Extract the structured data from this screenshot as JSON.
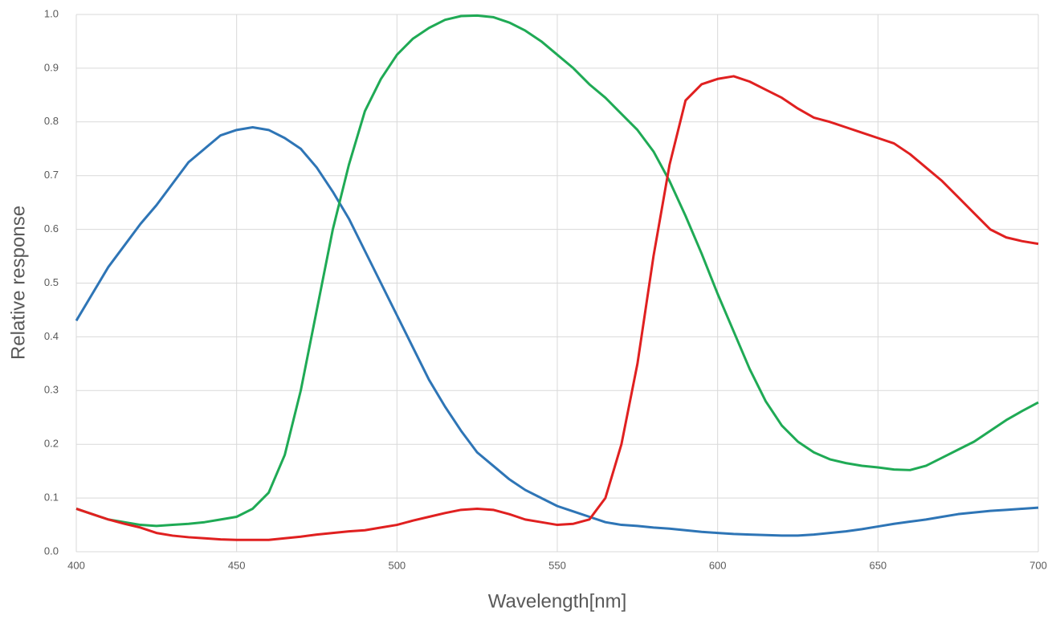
{
  "chart_data": {
    "type": "line",
    "xlabel": "Wavelength[nm]",
    "ylabel": "Relative response",
    "x": [
      400,
      405,
      410,
      415,
      420,
      425,
      430,
      435,
      440,
      445,
      450,
      455,
      460,
      465,
      470,
      475,
      480,
      485,
      490,
      495,
      500,
      505,
      510,
      515,
      520,
      525,
      530,
      535,
      540,
      545,
      550,
      555,
      560,
      565,
      570,
      575,
      580,
      585,
      590,
      595,
      600,
      605,
      610,
      615,
      620,
      625,
      630,
      635,
      640,
      645,
      650,
      655,
      660,
      665,
      670,
      675,
      680,
      685,
      690,
      695,
      700
    ],
    "series": [
      {
        "color": "#2e75b6",
        "values": [
          0.43,
          0.48,
          0.53,
          0.57,
          0.61,
          0.645,
          0.685,
          0.725,
          0.75,
          0.775,
          0.785,
          0.79,
          0.785,
          0.77,
          0.75,
          0.715,
          0.67,
          0.62,
          0.56,
          0.5,
          0.44,
          0.38,
          0.32,
          0.27,
          0.225,
          0.185,
          0.16,
          0.135,
          0.115,
          0.1,
          0.085,
          0.075,
          0.065,
          0.055,
          0.05,
          0.048,
          0.045,
          0.043,
          0.04,
          0.037,
          0.035,
          0.033,
          0.032,
          0.031,
          0.03,
          0.03,
          0.032,
          0.035,
          0.038,
          0.042,
          0.047,
          0.052,
          0.056,
          0.06,
          0.065,
          0.07,
          0.073,
          0.076,
          0.078,
          0.08,
          0.082
        ]
      },
      {
        "color": "#1faa55",
        "values": [
          0.08,
          0.07,
          0.06,
          0.055,
          0.05,
          0.048,
          0.05,
          0.052,
          0.055,
          0.06,
          0.065,
          0.08,
          0.11,
          0.18,
          0.3,
          0.45,
          0.6,
          0.72,
          0.82,
          0.88,
          0.925,
          0.955,
          0.975,
          0.99,
          0.997,
          0.998,
          0.995,
          0.985,
          0.97,
          0.95,
          0.925,
          0.9,
          0.87,
          0.845,
          0.815,
          0.785,
          0.745,
          0.69,
          0.625,
          0.555,
          0.48,
          0.41,
          0.34,
          0.28,
          0.235,
          0.205,
          0.185,
          0.172,
          0.165,
          0.16,
          0.157,
          0.153,
          0.152,
          0.16,
          0.175,
          0.19,
          0.205,
          0.225,
          0.245,
          0.262,
          0.278
        ]
      },
      {
        "color": "#e02020",
        "values": [
          0.08,
          0.07,
          0.06,
          0.052,
          0.045,
          0.035,
          0.03,
          0.027,
          0.025,
          0.023,
          0.022,
          0.022,
          0.022,
          0.025,
          0.028,
          0.032,
          0.035,
          0.038,
          0.04,
          0.045,
          0.05,
          0.058,
          0.065,
          0.072,
          0.078,
          0.08,
          0.078,
          0.07,
          0.06,
          0.055,
          0.05,
          0.052,
          0.06,
          0.1,
          0.2,
          0.35,
          0.55,
          0.72,
          0.84,
          0.87,
          0.88,
          0.885,
          0.875,
          0.86,
          0.845,
          0.825,
          0.808,
          0.8,
          0.79,
          0.78,
          0.77,
          0.76,
          0.74,
          0.715,
          0.69,
          0.66,
          0.63,
          0.6,
          0.585,
          0.578,
          0.573
        ]
      }
    ],
    "xlim": [
      400,
      700
    ],
    "xticks": [
      400,
      450,
      500,
      550,
      600,
      650,
      700
    ],
    "ylim": [
      0,
      1
    ],
    "yticks": [
      {
        "value": 0,
        "label": "0.0"
      },
      0.1,
      0.2,
      0.3,
      0.4,
      0.5,
      0.6,
      0.7,
      0.8,
      0.9,
      {
        "value": 1,
        "label": "1.0"
      }
    ],
    "grid": true
  }
}
